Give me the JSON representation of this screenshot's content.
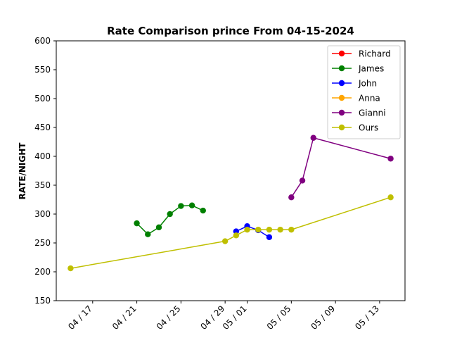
{
  "chart_data": {
    "type": "line",
    "title": "Rate Comparison prince From 04-15-2024",
    "xlabel": "",
    "ylabel": "RATE/NIGHT",
    "ylim": [
      150,
      600
    ],
    "xlim": [
      "2024-04-13T16:48",
      "2024-05-15T07:12"
    ],
    "yticks": [
      150,
      200,
      250,
      300,
      350,
      400,
      450,
      500,
      550,
      600
    ],
    "xticks": [
      {
        "date": "2024-04-17",
        "label": "04 / 17"
      },
      {
        "date": "2024-04-21",
        "label": "04 / 21"
      },
      {
        "date": "2024-04-25",
        "label": "04 / 25"
      },
      {
        "date": "2024-04-29",
        "label": "04 / 29"
      },
      {
        "date": "2024-05-01",
        "label": "05 / 01"
      },
      {
        "date": "2024-05-05",
        "label": "05 / 05"
      },
      {
        "date": "2024-05-09",
        "label": "05 / 09"
      },
      {
        "date": "2024-05-13",
        "label": "05 / 13"
      }
    ],
    "grid": false,
    "legend_position": "top-right",
    "series": [
      {
        "name": "Richard",
        "color": "#ff0000",
        "points": []
      },
      {
        "name": "James",
        "color": "#008000",
        "points": [
          [
            "2024-04-21",
            284
          ],
          [
            "2024-04-22",
            265
          ],
          [
            "2024-04-23",
            277
          ],
          [
            "2024-04-24",
            300
          ],
          [
            "2024-04-25",
            314
          ],
          [
            "2024-04-26",
            315
          ],
          [
            "2024-04-27",
            306
          ]
        ]
      },
      {
        "name": "John",
        "color": "#0000ff",
        "points": [
          [
            "2024-04-30",
            270
          ],
          [
            "2024-05-01",
            279
          ],
          [
            "2024-05-02",
            272
          ],
          [
            "2024-05-03",
            260
          ]
        ]
      },
      {
        "name": "Anna",
        "color": "#ffa500",
        "points": []
      },
      {
        "name": "Gianni",
        "color": "#800080",
        "points": [
          [
            "2024-05-05",
            329
          ],
          [
            "2024-05-06",
            358
          ],
          [
            "2024-05-07",
            432
          ],
          [
            "2024-05-14",
            396
          ]
        ]
      },
      {
        "name": "Ours",
        "color": "#bfbf00",
        "points": [
          [
            "2024-04-15",
            206
          ],
          [
            "2024-04-29",
            253
          ],
          [
            "2024-04-30",
            263
          ],
          [
            "2024-05-01",
            273
          ],
          [
            "2024-05-02",
            273
          ],
          [
            "2024-05-03",
            273
          ],
          [
            "2024-05-04",
            273
          ],
          [
            "2024-05-05",
            273
          ],
          [
            "2024-05-14",
            329
          ]
        ]
      }
    ]
  }
}
